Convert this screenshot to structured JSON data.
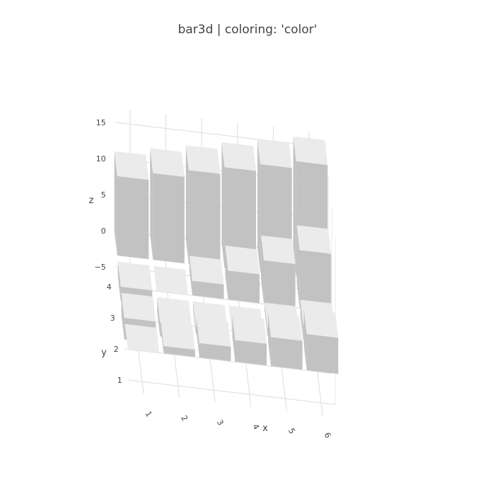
{
  "chart_data": {
    "type": "bar3d",
    "title": "bar3d | coloring: 'color'",
    "xlabel": "x",
    "ylabel": "y",
    "zlabel": "z",
    "x_ticks": [
      "1",
      "2",
      "3",
      "4",
      "5",
      "6"
    ],
    "y_ticks": [
      "1",
      "2",
      "3",
      "4"
    ],
    "z_ticks": [
      "−5",
      "0",
      "5",
      "10",
      "15"
    ],
    "x": [
      1,
      2,
      3,
      4,
      5,
      6
    ],
    "y": [
      1,
      2,
      3,
      4
    ],
    "zlim": [
      -6,
      17
    ],
    "grid": true,
    "values": [
      [
        0,
        1,
        2,
        3,
        4,
        5
      ],
      [
        -3,
        -2,
        -1,
        0,
        1,
        2
      ],
      [
        -2,
        0,
        2,
        4,
        6,
        8
      ],
      [
        11,
        12,
        13,
        14,
        15,
        16
      ]
    ],
    "colors": {
      "top": "#ebebeb",
      "side": "#c2c2c2",
      "grid": "#dddddd",
      "text": "#444444"
    }
  }
}
